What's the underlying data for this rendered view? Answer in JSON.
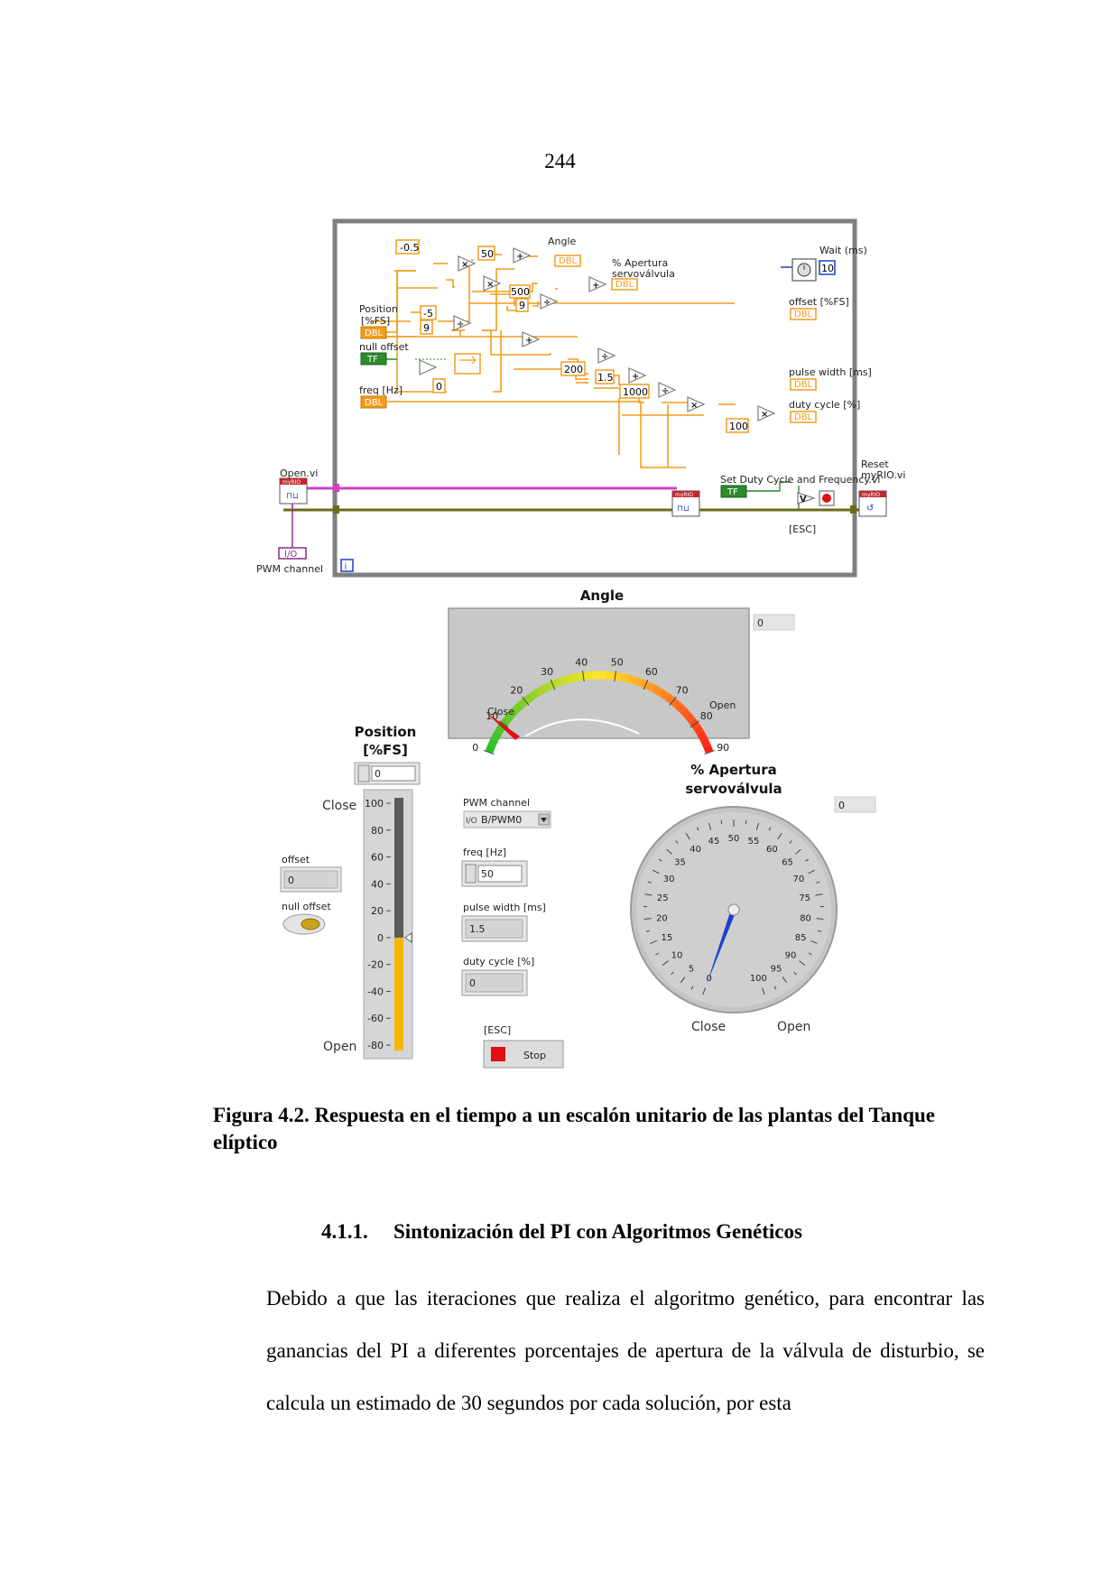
{
  "page_number": "244",
  "diagram": {
    "consts": {
      "m05": "-0.5",
      "c50": "50",
      "c500": "500",
      "c9a": "9",
      "m5": "-5",
      "c9b": "9",
      "c0": "0",
      "c200": "200",
      "c15": "1.5",
      "c1000": "1000",
      "c100": "100",
      "c10": "10"
    },
    "labels": {
      "angle": "Angle",
      "apertura1": "% Apertura",
      "apertura2": "servoválvula",
      "wait": "Wait (ms)",
      "position1": "Position",
      "position2": "[%FS]",
      "offset": "offset [%FS]",
      "null_offset": "null offset",
      "pulse_width": "pulse width [ms]",
      "freq": "freq [Hz]",
      "duty_cycle": "duty cycle [%]",
      "set_duty": "Set Duty Cycle and Frequency.vi",
      "open_vi": "Open.vi",
      "reset1": "Reset",
      "reset2": "myRIO.vi",
      "esc": "[ESC]",
      "pwm_channel": "PWM channel",
      "dbl": "DBL",
      "tf": "TF",
      "i": "i",
      "myrio": "myRIO",
      "io": "I/O"
    },
    "operators": {
      "mul": "×",
      "add": "+",
      "div": "÷",
      "or": "V"
    }
  },
  "front_panel": {
    "angle_title": "Angle",
    "angle_display": "0",
    "angle_ticks": [
      "0",
      "10",
      "20",
      "30",
      "40",
      "50",
      "60",
      "70",
      "80",
      "90"
    ],
    "angle_close": "Close",
    "angle_open": "Open",
    "angle_value": 0,
    "position_title1": "Position",
    "position_title2": "[%FS]",
    "position_value": "0",
    "slider_close": "Close",
    "slider_open": "Open",
    "slider_ticks": [
      "100",
      "80",
      "60",
      "40",
      "20",
      "0",
      "-20",
      "-40",
      "-60",
      "-80"
    ],
    "slider_level": 0,
    "offset_label": "offset",
    "offset_value": "0",
    "null_offset_label": "null offset",
    "pwm_label": "PWM channel",
    "pwm_value": "B/PWM0",
    "freq_label": "freq [Hz]",
    "freq_value": "50",
    "pulse_label": "pulse width [ms]",
    "pulse_value": "1.5",
    "duty_label": "duty cycle [%]",
    "duty_value": "0",
    "esc_label": "[ESC]",
    "stop_label": "Stop",
    "servo_title1": "% Apertura",
    "servo_title2": "servoválvula",
    "servo_display": "0",
    "servo_ticks": [
      "0",
      "5",
      "10",
      "15",
      "20",
      "25",
      "30",
      "35",
      "40",
      "45",
      "50",
      "55",
      "60",
      "65",
      "70",
      "75",
      "80",
      "85",
      "90",
      "95",
      "100"
    ],
    "servo_close": "Close",
    "servo_open": "Open",
    "servo_value": 0
  },
  "caption": "Figura 4.2. Respuesta en el tiempo a un escalón unitario de las plantas del Tanque elíptico",
  "section": {
    "number": "4.1.1.",
    "title": "Sintonización del PI con Algoritmos Genéticos"
  },
  "paragraph": "Debido a que las iteraciones que realiza el algoritmo genético, para encontrar las ganancias del PI a diferentes porcentajes de apertura de la válvula de disturbio, se calcula un estimado de 30 segundos por cada solución, por esta",
  "colors": {
    "wire_orange": "#f39c1e",
    "wire_pink": "#d13fc3",
    "wire_olive": "#6b6b17",
    "wire_green": "#2d8a2d",
    "loop_border": "#7f7f7f",
    "gauge_bg": "#c8c8c8",
    "needle_blue": "#1f3fd0",
    "slider_fill": "#f5b800",
    "stop_red": "#e01010"
  }
}
